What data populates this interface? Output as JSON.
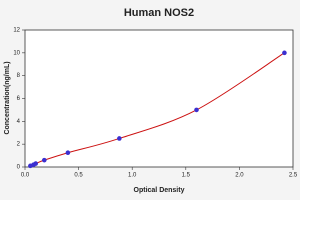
{
  "chart_data": {
    "type": "scatter",
    "title": "Human NOS2",
    "x_label": "Optical Density",
    "y_label": "Concentration(ng/mL)",
    "x": [
      0.05,
      0.08,
      0.1,
      0.18,
      0.4,
      0.88,
      1.6,
      2.42
    ],
    "series": [
      {
        "color": "#3b2fd0",
        "line_color": "#cc1111",
        "values": [
          0.1,
          0.2,
          0.3,
          0.6,
          1.25,
          2.5,
          5,
          10
        ]
      }
    ],
    "xlim": [
      0,
      2.5
    ],
    "ylim": [
      0,
      12
    ],
    "xticks": [
      {
        "value": 0,
        "label": "0.0"
      },
      0.5,
      {
        "value": 1,
        "label": "1.0"
      },
      1.5,
      {
        "value": 2,
        "label": "2.0"
      },
      2.5
    ],
    "yticks": [
      0,
      2,
      4,
      6,
      8,
      10,
      12
    ],
    "grid": false
  }
}
